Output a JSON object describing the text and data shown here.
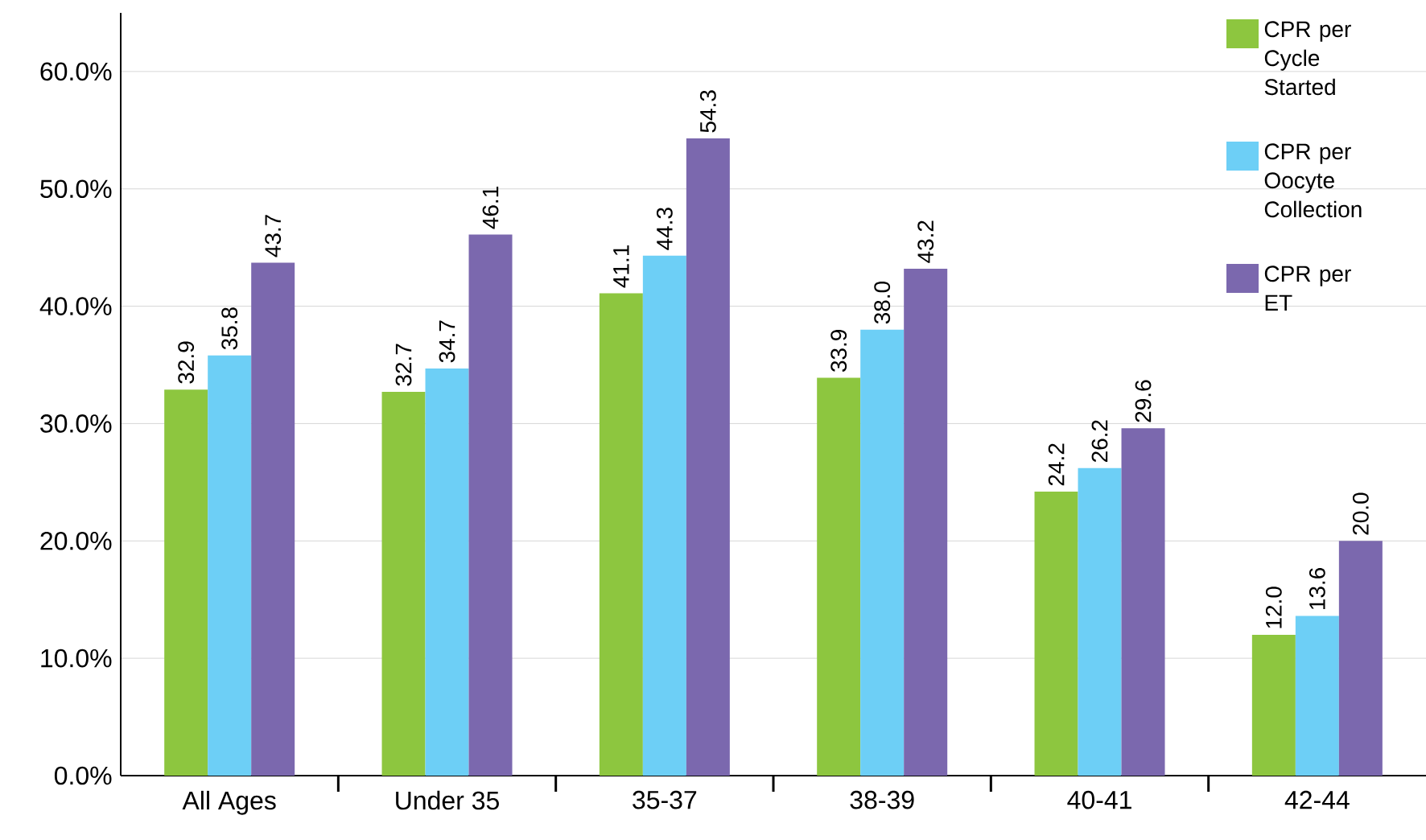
{
  "chart_data": {
    "type": "bar",
    "categories": [
      "All Ages",
      "Under 35",
      "35-37",
      "38-39",
      "40-41",
      "42-44"
    ],
    "series": [
      {
        "name": "CPR per Cycle Started",
        "color": "#8dc63f",
        "values": [
          32.9,
          32.7,
          41.1,
          33.9,
          24.2,
          12.0
        ],
        "value_labels": [
          "32.9",
          "32.7",
          "41.1",
          "33.9",
          "24.2",
          "12.0"
        ]
      },
      {
        "name": "CPR per Oocyte Collection",
        "color": "#6dcff6",
        "values": [
          35.8,
          34.7,
          44.3,
          38.0,
          26.2,
          13.6
        ],
        "value_labels": [
          "35.8",
          "34.7",
          "44.3",
          "38.0",
          "26.2",
          "13.6"
        ]
      },
      {
        "name": "CPR per ET",
        "color": "#7b68ae",
        "values": [
          43.7,
          46.1,
          54.3,
          43.2,
          29.6,
          20.0
        ],
        "value_labels": [
          "43.7",
          "46.1",
          "54.3",
          "43.2",
          "29.6",
          "20.0"
        ]
      }
    ],
    "ylim": [
      0,
      65
    ],
    "yticks": [
      {
        "value": 0,
        "label": "0.0%"
      },
      {
        "value": 10,
        "label": "10.0%"
      },
      {
        "value": 20,
        "label": "20.0%"
      },
      {
        "value": 30,
        "label": "30.0%"
      },
      {
        "value": 40,
        "label": "40.0%"
      },
      {
        "value": 50,
        "label": "50.0%"
      },
      {
        "value": 60,
        "label": "60.0%"
      }
    ],
    "grid": "y",
    "legend": "top right"
  }
}
